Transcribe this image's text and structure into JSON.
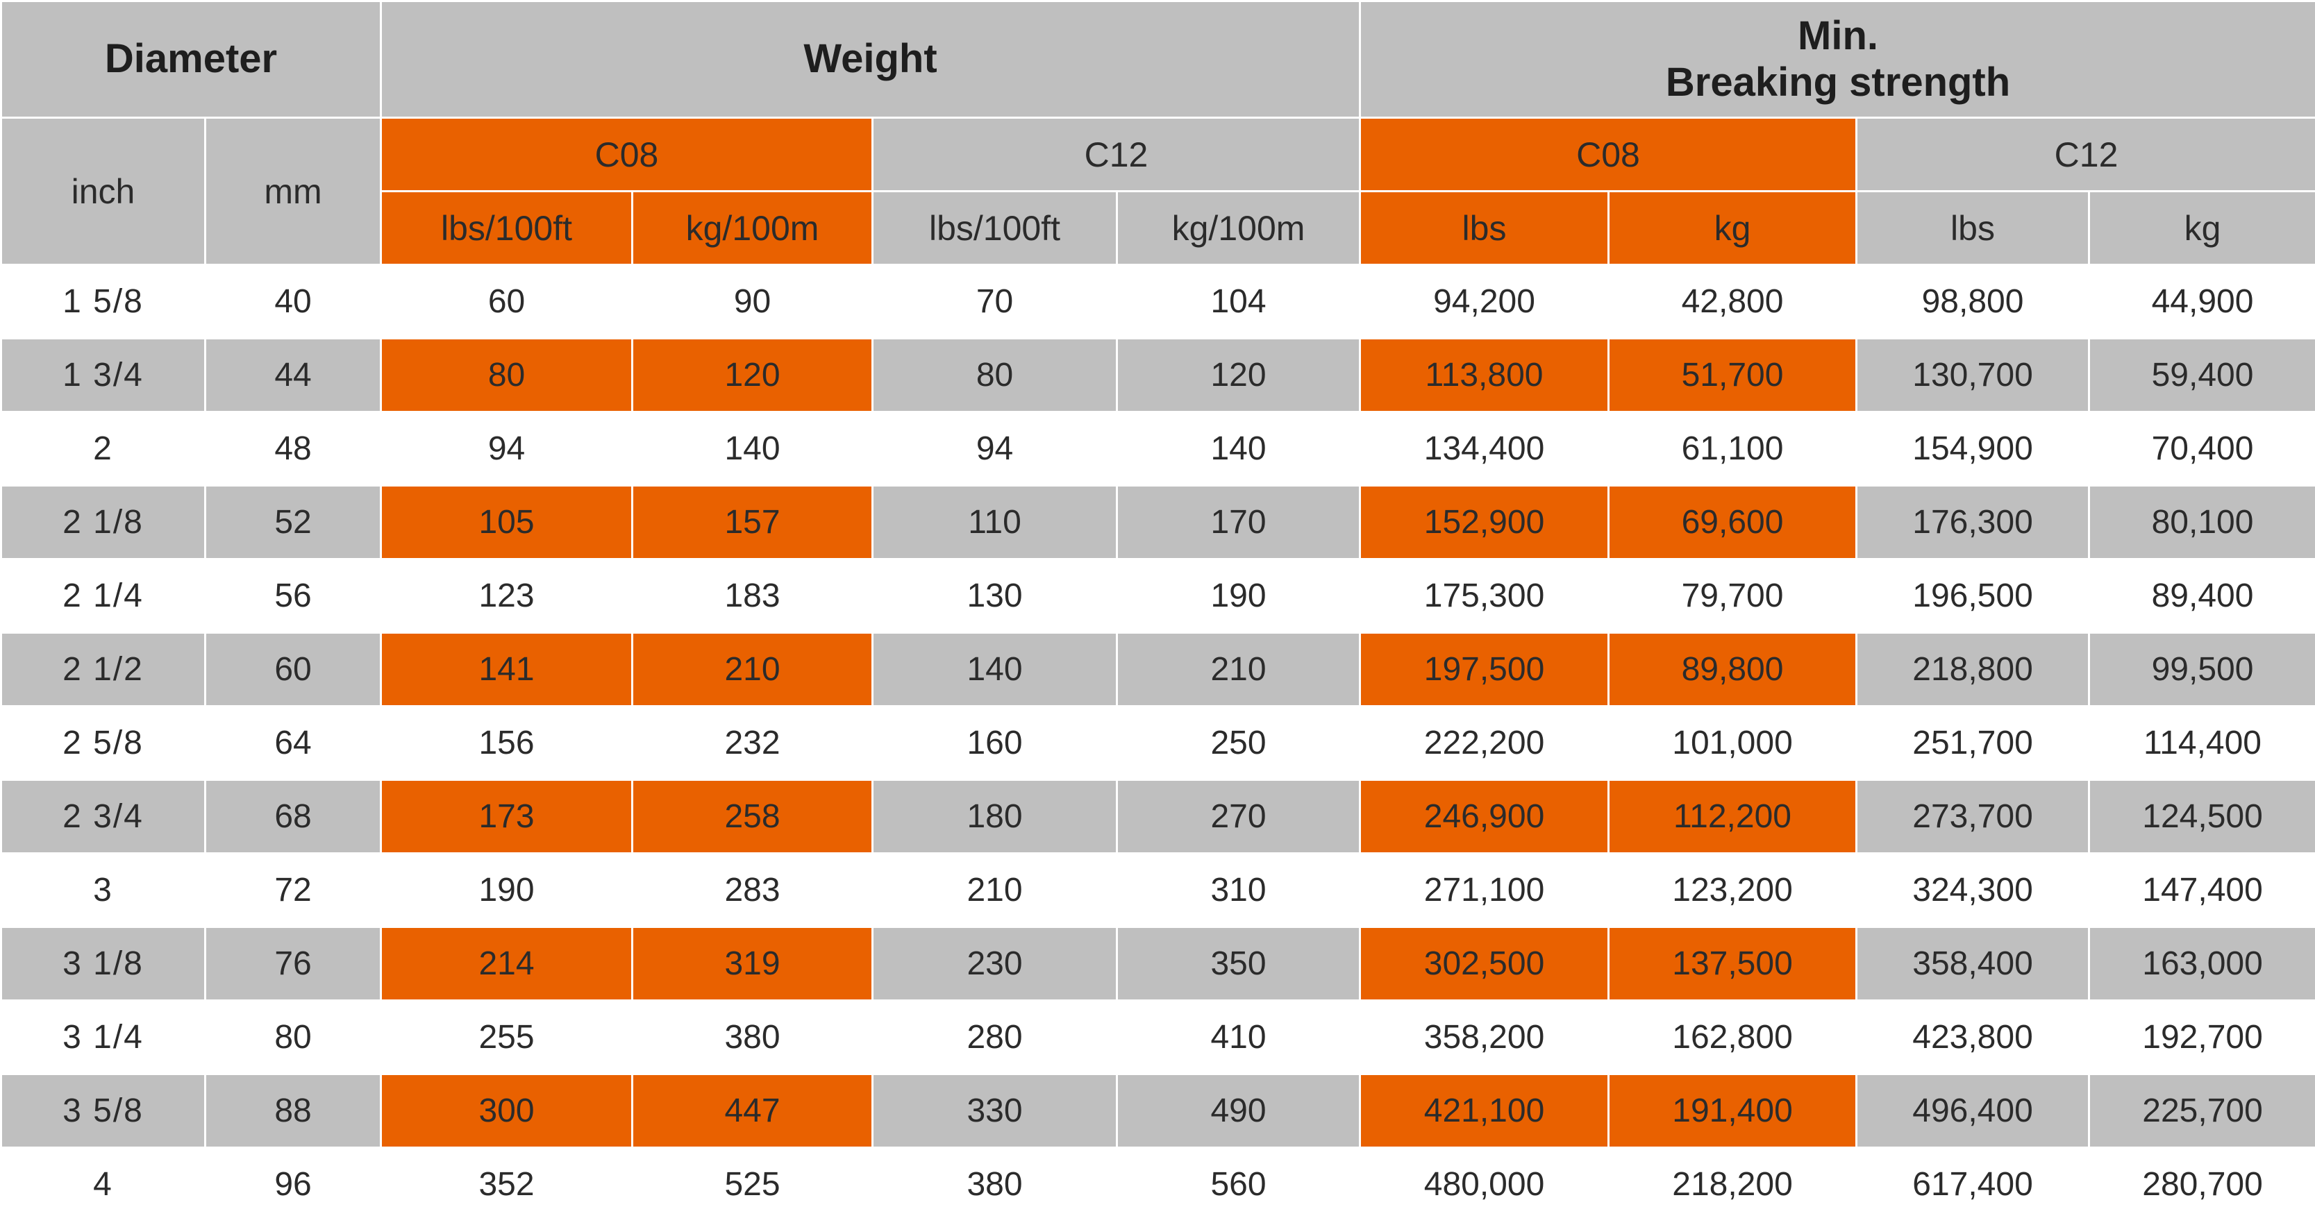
{
  "headers": {
    "diameter": "Diameter",
    "weight": "Weight",
    "breaking_line1": "Min.",
    "breaking_line2": "Breaking strength",
    "inch": "inch",
    "mm": "mm",
    "c08_weight": "C08",
    "c12_weight": "C12",
    "c08_breaking": "C08",
    "c12_breaking": "C12",
    "w_c08_lbs": "lbs/100ft",
    "w_c08_kg": "kg/100m",
    "w_c12_lbs": "lbs/100ft",
    "w_c12_kg": "kg/100m",
    "b_c08_lbs": "lbs",
    "b_c08_kg": "kg",
    "b_c12_lbs": "lbs",
    "b_c12_kg": "kg"
  },
  "colors": {
    "orange": "#e96100",
    "gray": "#bfbfbf",
    "white": "#ffffff"
  },
  "rows": [
    [
      "1  5/8",
      "40",
      "60",
      "90",
      "70",
      "104",
      "94,200",
      "42,800",
      "98,800",
      "44,900"
    ],
    [
      "1  3/4",
      "44",
      "80",
      "120",
      "80",
      "120",
      "113,800",
      "51,700",
      "130,700",
      "59,400"
    ],
    [
      "2",
      "48",
      "94",
      "140",
      "94",
      "140",
      "134,400",
      "61,100",
      "154,900",
      "70,400"
    ],
    [
      "2  1/8",
      "52",
      "105",
      "157",
      "110",
      "170",
      "152,900",
      "69,600",
      "176,300",
      "80,100"
    ],
    [
      "2  1/4",
      "56",
      "123",
      "183",
      "130",
      "190",
      "175,300",
      "79,700",
      "196,500",
      "89,400"
    ],
    [
      "2  1/2",
      "60",
      "141",
      "210",
      "140",
      "210",
      "197,500",
      "89,800",
      "218,800",
      "99,500"
    ],
    [
      "2  5/8",
      "64",
      "156",
      "232",
      "160",
      "250",
      "222,200",
      "101,000",
      "251,700",
      "114,400"
    ],
    [
      "2  3/4",
      "68",
      "173",
      "258",
      "180",
      "270",
      "246,900",
      "112,200",
      "273,700",
      "124,500"
    ],
    [
      "3",
      "72",
      "190",
      "283",
      "210",
      "310",
      "271,100",
      "123,200",
      "324,300",
      "147,400"
    ],
    [
      "3  1/8",
      "76",
      "214",
      "319",
      "230",
      "350",
      "302,500",
      "137,500",
      "358,400",
      "163,000"
    ],
    [
      "3  1/4",
      "80",
      "255",
      "380",
      "280",
      "410",
      "358,200",
      "162,800",
      "423,800",
      "192,700"
    ],
    [
      "3  5/8",
      "88",
      "300",
      "447",
      "330",
      "490",
      "421,100",
      "191,400",
      "496,400",
      "225,700"
    ],
    [
      "4",
      "96",
      "352",
      "525",
      "380",
      "560",
      "480,000",
      "218,200",
      "617,400",
      "280,700"
    ]
  ]
}
